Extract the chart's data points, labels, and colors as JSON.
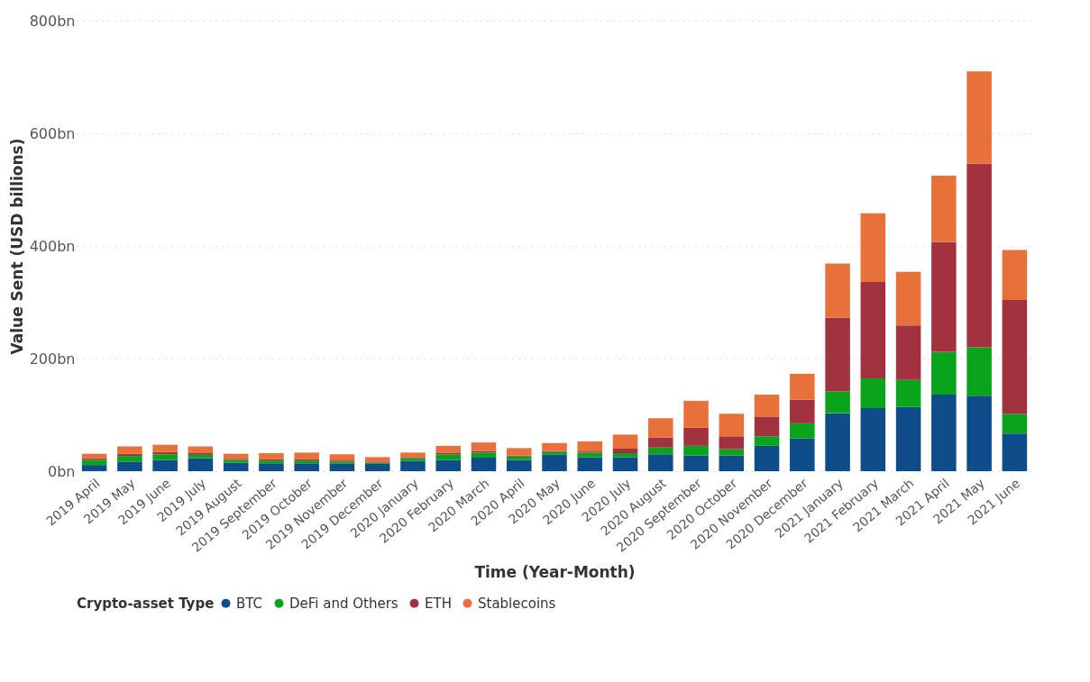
{
  "chart_data": {
    "type": "bar",
    "stacked": true,
    "xlabel": "Time (Year-Month)",
    "ylabel": "Value Sent (USD billions)",
    "legend_title": "Crypto-asset Type",
    "legend": "bottom",
    "grid": "y",
    "categories": [
      "2019 April",
      "2019 May",
      "2019 June",
      "2019 July",
      "2019 August",
      "2019 September",
      "2019 October",
      "2019 November",
      "2019 December",
      "2020 January",
      "2020 February",
      "2020 March",
      "2020 April",
      "2020 May",
      "2020 June",
      "2020 July",
      "2020 August",
      "2020 September",
      "2020 October",
      "2020 November",
      "2020 December",
      "2021 January",
      "2021 February",
      "2021 March",
      "2021 April",
      "2021 May",
      "2021 June"
    ],
    "ylim": [
      0,
      800
    ],
    "yticks": [
      {
        "value": 0,
        "label": "0bn"
      },
      {
        "value": 200,
        "label": "200bn"
      },
      {
        "value": 400,
        "label": "400bn"
      },
      {
        "value": 600,
        "label": "600bn"
      },
      {
        "value": 800,
        "label": "800bn"
      }
    ],
    "series": [
      {
        "name": "BTC",
        "color": "#0f4c8a",
        "values": [
          11,
          17,
          20,
          23,
          15,
          14,
          14,
          13,
          13,
          18,
          20,
          24,
          20,
          29,
          25,
          25,
          30,
          28,
          28,
          45,
          58,
          103,
          112,
          114,
          136,
          134,
          67
        ]
      },
      {
        "name": "DeFi and Others",
        "color": "#0aa31c",
        "values": [
          9,
          10,
          10,
          6,
          5,
          5,
          5,
          4,
          2,
          5,
          10,
          9,
          6,
          5,
          8,
          7,
          12,
          17,
          11,
          17,
          27,
          39,
          53,
          48,
          76,
          86,
          35
        ]
      },
      {
        "name": "ETH",
        "color": "#a33240",
        "values": [
          3,
          4,
          4,
          4,
          2,
          2,
          2,
          2,
          2,
          2,
          3,
          3,
          2,
          2,
          2,
          8,
          18,
          32,
          23,
          35,
          42,
          131,
          171,
          97,
          195,
          326,
          202
        ]
      },
      {
        "name": "Stablecoins",
        "color": "#e8703a",
        "values": [
          8,
          13,
          13,
          11,
          9,
          11,
          12,
          11,
          8,
          8,
          12,
          15,
          13,
          14,
          18,
          25,
          34,
          48,
          40,
          39,
          46,
          96,
          122,
          95,
          118,
          164,
          89
        ]
      }
    ]
  }
}
